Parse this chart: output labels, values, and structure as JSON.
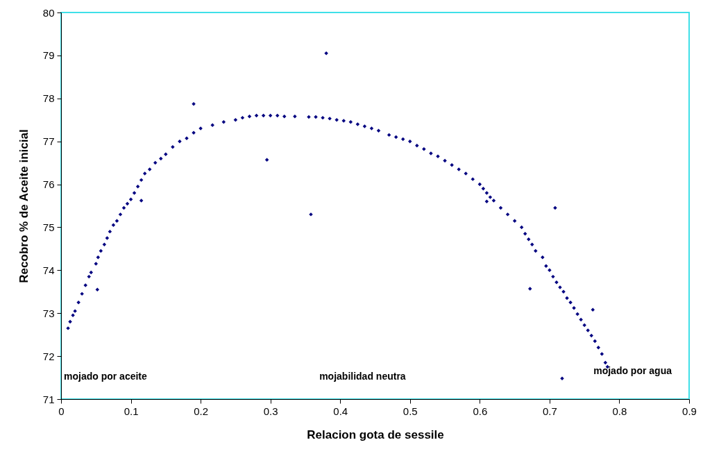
{
  "chart_data": {
    "type": "scatter",
    "xlabel": "Relacion gota de sessile",
    "ylabel": "Recobro % de Aceite inicial",
    "xlim": [
      0,
      0.9
    ],
    "xticks": [
      0,
      0.1,
      0.2,
      0.3,
      0.4,
      0.5,
      0.6,
      0.7,
      0.8,
      0.9
    ],
    "ylim": [
      71,
      80
    ],
    "yticks": [
      71,
      72,
      73,
      74,
      75,
      76,
      77,
      78,
      79,
      80
    ],
    "grid": false,
    "marker": "diamond",
    "annotations": [
      "mojado por aceite",
      "mojabilidad neutra",
      "mojado por agua"
    ],
    "series": [
      {
        "color": "#000080",
        "x": [
          0.01,
          0.013,
          0.017,
          0.02,
          0.025,
          0.03,
          0.035,
          0.04,
          0.043,
          0.05,
          0.053,
          0.057,
          0.062,
          0.066,
          0.07,
          0.075,
          0.08,
          0.085,
          0.09,
          0.095,
          0.1,
          0.105,
          0.11,
          0.115,
          0.12,
          0.127,
          0.135,
          0.143,
          0.15,
          0.16,
          0.17,
          0.18,
          0.19,
          0.2,
          0.217,
          0.233,
          0.25,
          0.26,
          0.27,
          0.28,
          0.29,
          0.3,
          0.31,
          0.32,
          0.335,
          0.355,
          0.365,
          0.375,
          0.385,
          0.395,
          0.405,
          0.415,
          0.425,
          0.435,
          0.445,
          0.455,
          0.47,
          0.48,
          0.49,
          0.5,
          0.51,
          0.52,
          0.53,
          0.54,
          0.55,
          0.56,
          0.57,
          0.58,
          0.59,
          0.6,
          0.605,
          0.61,
          0.615,
          0.62,
          0.63,
          0.64,
          0.65,
          0.66,
          0.665,
          0.67,
          0.675,
          0.68,
          0.69,
          0.695,
          0.7,
          0.705,
          0.71,
          0.715,
          0.72,
          0.725,
          0.73,
          0.735,
          0.74,
          0.745,
          0.75,
          0.755,
          0.76,
          0.765,
          0.77,
          0.775,
          0.78,
          0.783,
          0.052,
          0.115,
          0.19,
          0.295,
          0.358,
          0.38,
          0.61,
          0.672,
          0.708,
          0.762,
          0.718
        ],
        "values": [
          72.65,
          72.8,
          72.95,
          73.05,
          73.25,
          73.45,
          73.65,
          73.85,
          73.95,
          74.15,
          74.3,
          74.45,
          74.6,
          74.75,
          74.9,
          75.05,
          75.15,
          75.3,
          75.45,
          75.55,
          75.65,
          75.8,
          75.95,
          76.1,
          76.25,
          76.35,
          76.5,
          76.6,
          76.7,
          76.87,
          77.0,
          77.07,
          77.2,
          77.3,
          77.38,
          77.45,
          77.5,
          77.55,
          77.58,
          77.6,
          77.6,
          77.6,
          77.6,
          77.58,
          77.58,
          77.57,
          77.57,
          77.55,
          77.53,
          77.5,
          77.48,
          77.45,
          77.4,
          77.35,
          77.3,
          77.25,
          77.15,
          77.1,
          77.05,
          77.0,
          76.9,
          76.82,
          76.72,
          76.65,
          76.55,
          76.45,
          76.35,
          76.25,
          76.12,
          76.0,
          75.9,
          75.8,
          75.7,
          75.62,
          75.45,
          75.3,
          75.15,
          75.0,
          74.85,
          74.72,
          74.6,
          74.45,
          74.3,
          74.1,
          74.0,
          73.85,
          73.72,
          73.6,
          73.5,
          73.35,
          73.25,
          73.12,
          72.98,
          72.85,
          72.72,
          72.6,
          72.48,
          72.35,
          72.2,
          72.05,
          71.85,
          71.75,
          73.55,
          75.62,
          77.87,
          76.57,
          75.3,
          79.05,
          75.6,
          73.57,
          75.45,
          73.08,
          71.48
        ]
      }
    ]
  }
}
